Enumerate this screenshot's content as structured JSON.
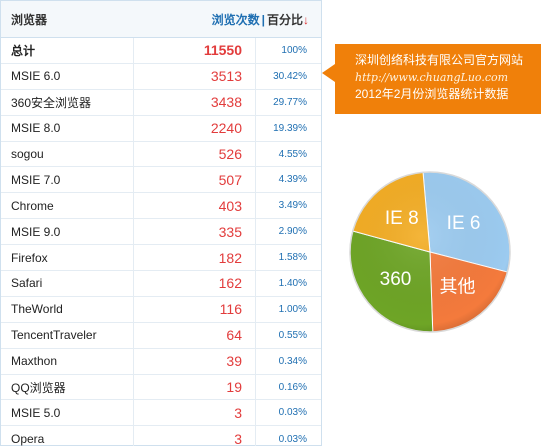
{
  "table": {
    "header": {
      "browser": "浏览器",
      "visits": "浏览次数",
      "separator": "|",
      "percent": "百分比",
      "sort_arrow": "↓"
    },
    "total": {
      "name": "总计",
      "count": "11550",
      "percent": "100%"
    },
    "rows": [
      {
        "name": "MSIE 6.0",
        "count": "3513",
        "percent": "30.42%"
      },
      {
        "name": "360安全浏览器",
        "count": "3438",
        "percent": "29.77%"
      },
      {
        "name": "MSIE 8.0",
        "count": "2240",
        "percent": "19.39%"
      },
      {
        "name": "sogou",
        "count": "526",
        "percent": "4.55%"
      },
      {
        "name": "MSIE 7.0",
        "count": "507",
        "percent": "4.39%"
      },
      {
        "name": "Chrome",
        "count": "403",
        "percent": "3.49%"
      },
      {
        "name": "MSIE 9.0",
        "count": "335",
        "percent": "2.90%"
      },
      {
        "name": "Firefox",
        "count": "182",
        "percent": "1.58%"
      },
      {
        "name": "Safari",
        "count": "162",
        "percent": "1.40%"
      },
      {
        "name": "TheWorld",
        "count": "116",
        "percent": "1.00%"
      },
      {
        "name": "TencentTraveler",
        "count": "64",
        "percent": "0.55%"
      },
      {
        "name": "Maxthon",
        "count": "39",
        "percent": "0.34%"
      },
      {
        "name": "QQ浏览器",
        "count": "19",
        "percent": "0.16%"
      },
      {
        "name": "MSIE 5.0",
        "count": "3",
        "percent": "0.03%"
      },
      {
        "name": "Opera",
        "count": "3",
        "percent": "0.03%"
      }
    ]
  },
  "callout": {
    "company": "深圳创络科技有限公司官方网站",
    "url": "http://www.chuangLuo.com",
    "caption": "2012年2月份浏览器统计数据",
    "color": "#f0800a"
  },
  "chart_data": {
    "type": "pie",
    "slices": [
      {
        "label": "IE 6",
        "value": 30.42,
        "color": "#9ccbf0"
      },
      {
        "label": "其他",
        "value": 20.42,
        "color": "#f47a3c"
      },
      {
        "label": "360",
        "value": 29.77,
        "color": "#6ea526"
      },
      {
        "label": "IE 8",
        "value": 19.39,
        "color": "#f3ad24"
      }
    ]
  },
  "colors": {
    "count_text": "#e23c3c",
    "percent_text": "#1f6fb2",
    "header_blue": "#1f6fb2"
  }
}
